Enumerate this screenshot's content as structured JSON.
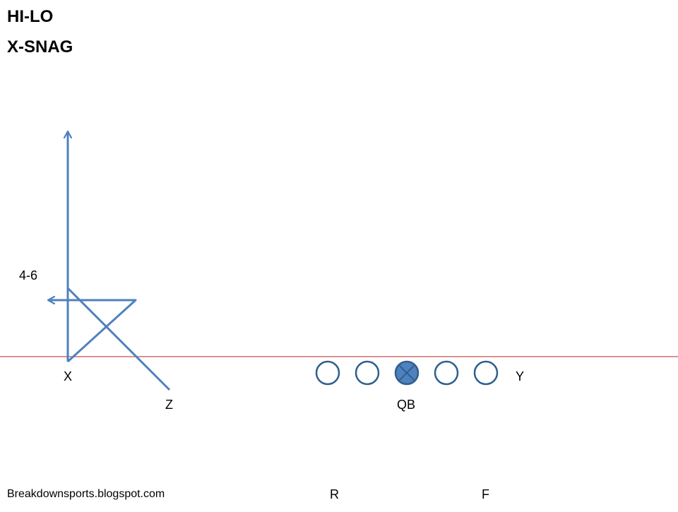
{
  "title": {
    "line1": "HI-LO",
    "line2": "X-SNAG"
  },
  "labels": {
    "depth": "4-6",
    "x": "X",
    "z": "Z",
    "qb": "QB",
    "y": "Y",
    "r": "R",
    "f": "F"
  },
  "footer": {
    "credit": "Breakdownsports.blogspot.com"
  },
  "colors": {
    "route": "#4f81bd",
    "route_dark": "#2f5f8f",
    "line_of_scrimmage": "#c0504d",
    "text": "#000000"
  },
  "offensive_line": [
    {
      "name": "lineman",
      "filled": false
    },
    {
      "name": "lineman",
      "filled": false
    },
    {
      "name": "center",
      "filled": true,
      "mark": "x"
    },
    {
      "name": "lineman",
      "filled": false
    },
    {
      "name": "lineman",
      "filled": false
    }
  ]
}
